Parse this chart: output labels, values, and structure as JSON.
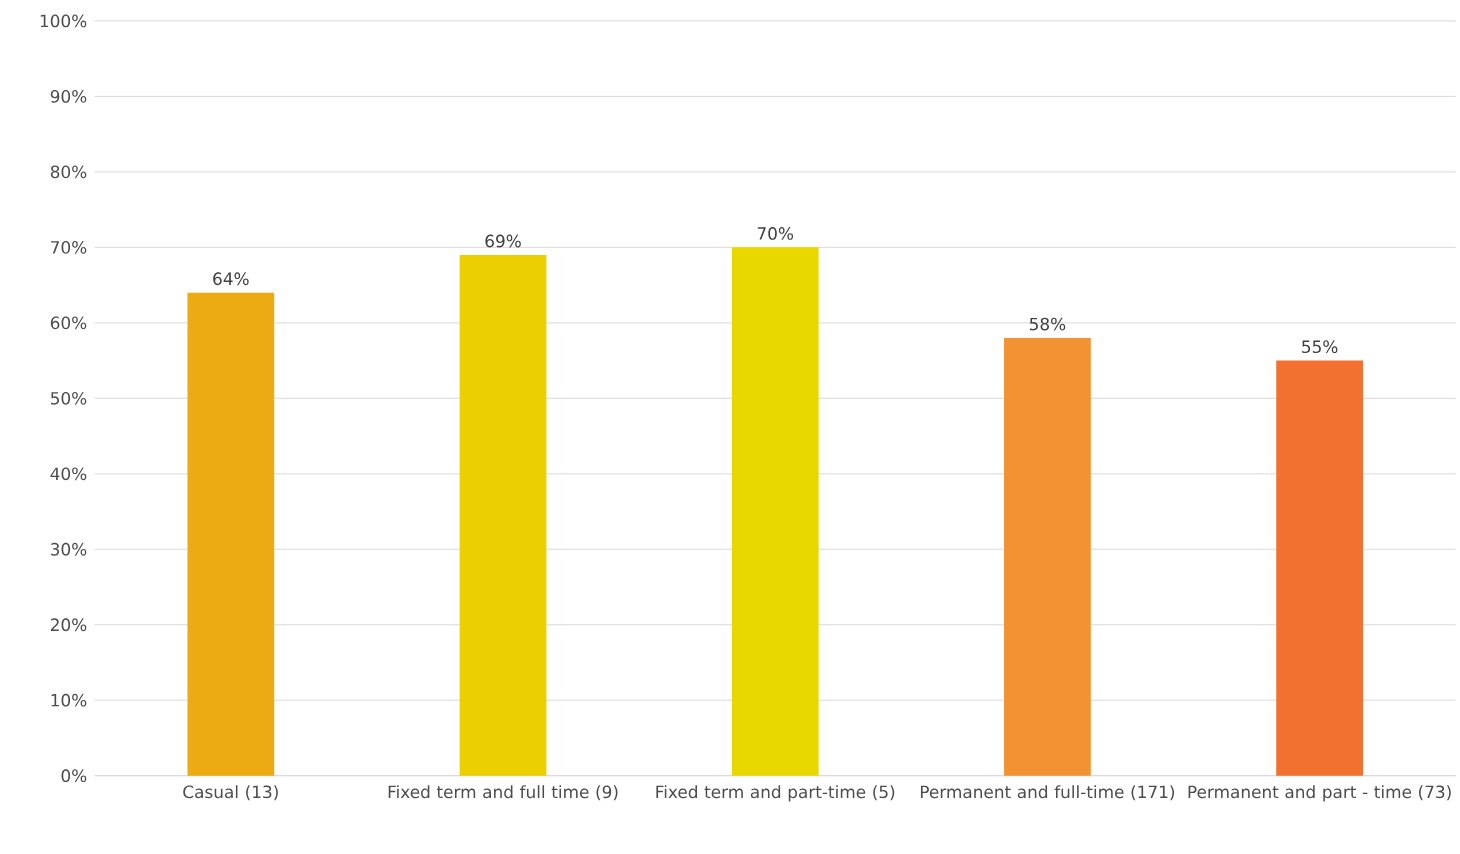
{
  "chart_data": {
    "type": "bar",
    "categories": [
      "Casual (13)",
      "Fixed term and full time (9)",
      "Fixed term and part-time (5)",
      "Permanent and full-time (171)",
      "Permanent and part - time (73)"
    ],
    "values": [
      64,
      69,
      70,
      58,
      55
    ],
    "colors": [
      "#edab13",
      "#ebcf00",
      "#e8d800",
      "#f39233",
      "#f27130"
    ],
    "value_labels": [
      "64%",
      "69%",
      "70%",
      "58%",
      "55%"
    ],
    "ylim": [
      0,
      100
    ],
    "yticks": [
      {
        "value": 0,
        "label": "0%"
      },
      {
        "value": 10,
        "label": "10%"
      },
      {
        "value": 20,
        "label": "20%"
      },
      {
        "value": 30,
        "label": "30%"
      },
      {
        "value": 40,
        "label": "40%"
      },
      {
        "value": 50,
        "label": "50%"
      },
      {
        "value": 60,
        "label": "60%"
      },
      {
        "value": 70,
        "label": "70%"
      },
      {
        "value": 80,
        "label": "80%"
      },
      {
        "value": 90,
        "label": "90%"
      },
      {
        "value": 100,
        "label": "100%"
      }
    ],
    "grid": "y"
  }
}
